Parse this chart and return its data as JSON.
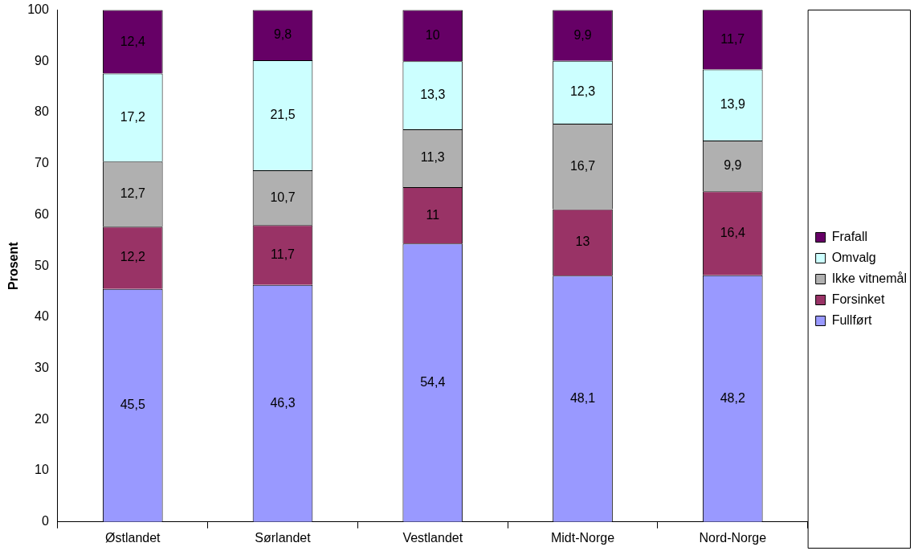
{
  "chart_data": {
    "type": "bar",
    "stacked": true,
    "ylabel": "Prosent",
    "categories": [
      "Østlandet",
      "Sørlandet",
      "Vestlandet",
      "Midt-Norge",
      "Nord-Norge"
    ],
    "ylim": [
      0,
      100
    ],
    "yticks": [
      0,
      10,
      20,
      30,
      40,
      50,
      60,
      70,
      80,
      90,
      100
    ],
    "grid": false,
    "legend": "right",
    "series": [
      {
        "name": "Fullført",
        "color": "#9999ff",
        "values": [
          45.5,
          46.3,
          54.4,
          48.1,
          48.2
        ],
        "value_labels": [
          "45,5",
          "46,3",
          "54,4",
          "48,1",
          "48,2"
        ]
      },
      {
        "name": "Forsinket",
        "color": "#993366",
        "values": [
          12.2,
          11.7,
          11,
          13,
          16.4
        ],
        "value_labels": [
          "12,2",
          "11,7",
          "11",
          "13",
          "16,4"
        ]
      },
      {
        "name": "Ikke vitnemål",
        "color": "#b0b0b0",
        "values": [
          12.7,
          10.7,
          11.3,
          16.7,
          9.9
        ],
        "value_labels": [
          "12,7",
          "10,7",
          "11,3",
          "16,7",
          "9,9"
        ]
      },
      {
        "name": "Omvalg",
        "color": "#ccffff",
        "values": [
          17.2,
          21.5,
          13.3,
          12.3,
          13.9
        ],
        "value_labels": [
          "17,2",
          "21,5",
          "13,3",
          "12,3",
          "13,9"
        ]
      },
      {
        "name": "Frafall",
        "color": "#660066",
        "values": [
          12.4,
          9.8,
          10,
          9.9,
          11.7
        ],
        "value_labels": [
          "12,4",
          "9,8",
          "10",
          "9,9",
          "11,7"
        ]
      }
    ]
  }
}
